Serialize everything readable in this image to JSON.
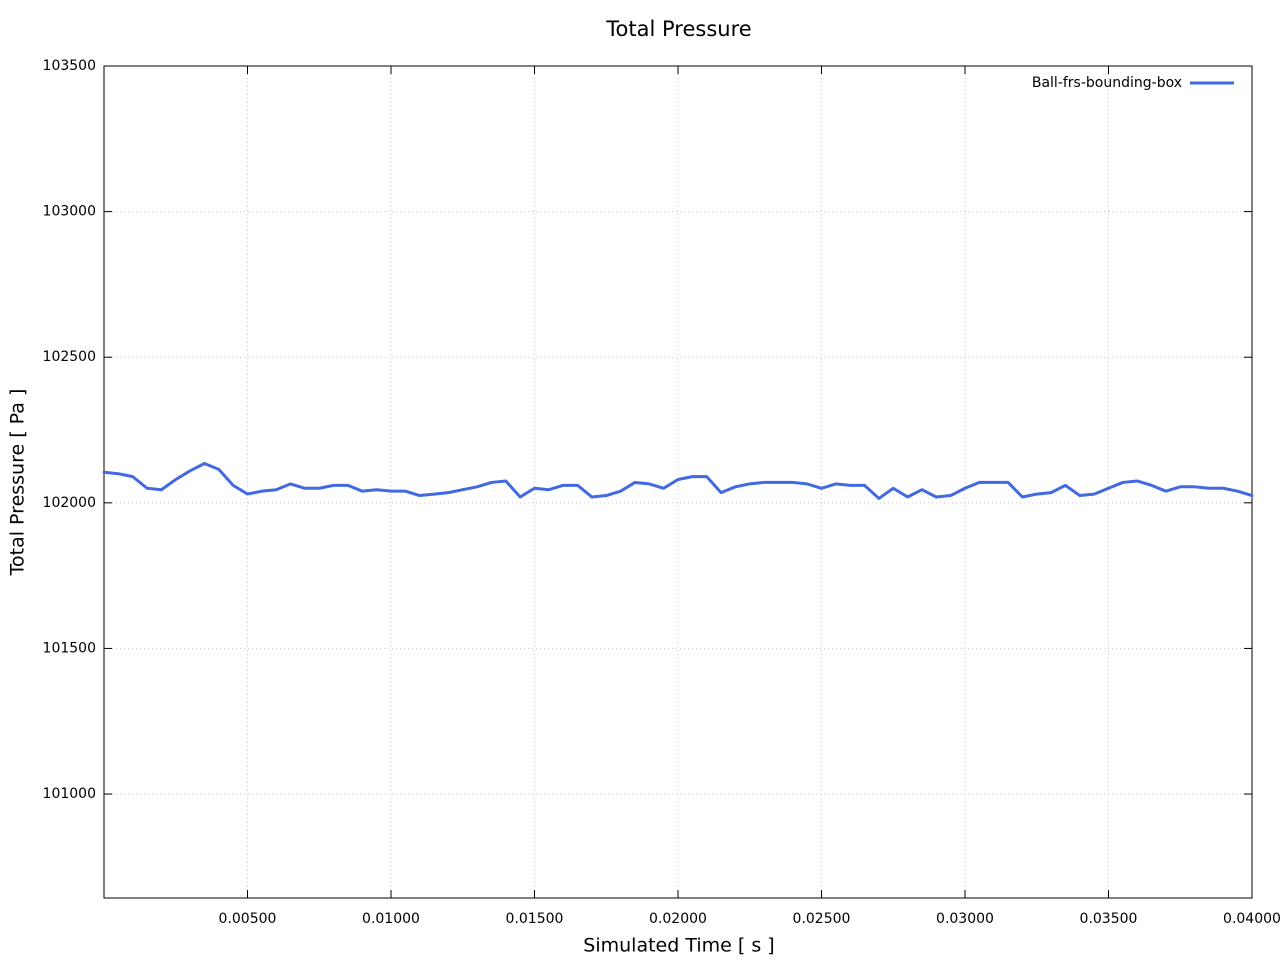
{
  "chart_data": {
    "type": "line",
    "title": "Total Pressure",
    "x_label": "Simulated Time [ s ]",
    "y_label": "Total Pressure [ Pa ]",
    "xlim": [
      0,
      0.04
    ],
    "ylim": [
      100643,
      103500
    ],
    "xticks": [
      {
        "value": 0.005,
        "label": "0.00500"
      },
      {
        "value": 0.01,
        "label": "0.01000"
      },
      {
        "value": 0.015,
        "label": "0.01500"
      },
      {
        "value": 0.02,
        "label": "0.02000"
      },
      {
        "value": 0.025,
        "label": "0.02500"
      },
      {
        "value": 0.03,
        "label": "0.03000"
      },
      {
        "value": 0.035,
        "label": "0.03500"
      },
      {
        "value": 0.04,
        "label": "0.04000"
      }
    ],
    "yticks": [
      101000,
      101500,
      102000,
      102500,
      103000,
      103500
    ],
    "grid": true,
    "legend_position": "top-right",
    "x": [
      0,
      0.0005,
      0.001,
      0.0015,
      0.002,
      0.0025,
      0.003,
      0.0035,
      0.004,
      0.0045,
      0.005,
      0.0055,
      0.006,
      0.0065,
      0.007,
      0.0075,
      0.008,
      0.0085,
      0.009,
      0.0095,
      0.01,
      0.0105,
      0.011,
      0.0115,
      0.012,
      0.0125,
      0.013,
      0.0135,
      0.014,
      0.0145,
      0.015,
      0.0155,
      0.016,
      0.0165,
      0.017,
      0.0175,
      0.018,
      0.0185,
      0.019,
      0.0195,
      0.02,
      0.0205,
      0.021,
      0.0215,
      0.022,
      0.0225,
      0.023,
      0.0235,
      0.024,
      0.0245,
      0.025,
      0.0255,
      0.026,
      0.0265,
      0.027,
      0.0275,
      0.028,
      0.0285,
      0.029,
      0.0295,
      0.03,
      0.0305,
      0.031,
      0.0315,
      0.032,
      0.0325,
      0.033,
      0.0335,
      0.034,
      0.0345,
      0.035,
      0.0355,
      0.036,
      0.0365,
      0.037,
      0.0375,
      0.038,
      0.0385,
      0.039,
      0.0395,
      0.04
    ],
    "series": [
      {
        "name": "Ball-frs-bounding-box",
        "color": "#4169e1",
        "values": [
          102105,
          102100,
          102090,
          102050,
          102045,
          102080,
          102110,
          102135,
          102115,
          102060,
          102030,
          102040,
          102045,
          102065,
          102050,
          102050,
          102060,
          102060,
          102040,
          102045,
          102040,
          102040,
          102025,
          102030,
          102035,
          102045,
          102055,
          102070,
          102075,
          102020,
          102050,
          102045,
          102060,
          102060,
          102020,
          102025,
          102040,
          102070,
          102065,
          102050,
          102080,
          102090,
          102090,
          102035,
          102055,
          102065,
          102070,
          102070,
          102070,
          102065,
          102050,
          102065,
          102060,
          102060,
          102015,
          102050,
          102020,
          102045,
          102020,
          102025,
          102050,
          102070,
          102070,
          102070,
          102020,
          102030,
          102035,
          102060,
          102025,
          102030,
          102050,
          102070,
          102075,
          102060,
          102040,
          102055,
          102055,
          102050,
          102050,
          102040,
          102025
        ]
      }
    ]
  }
}
